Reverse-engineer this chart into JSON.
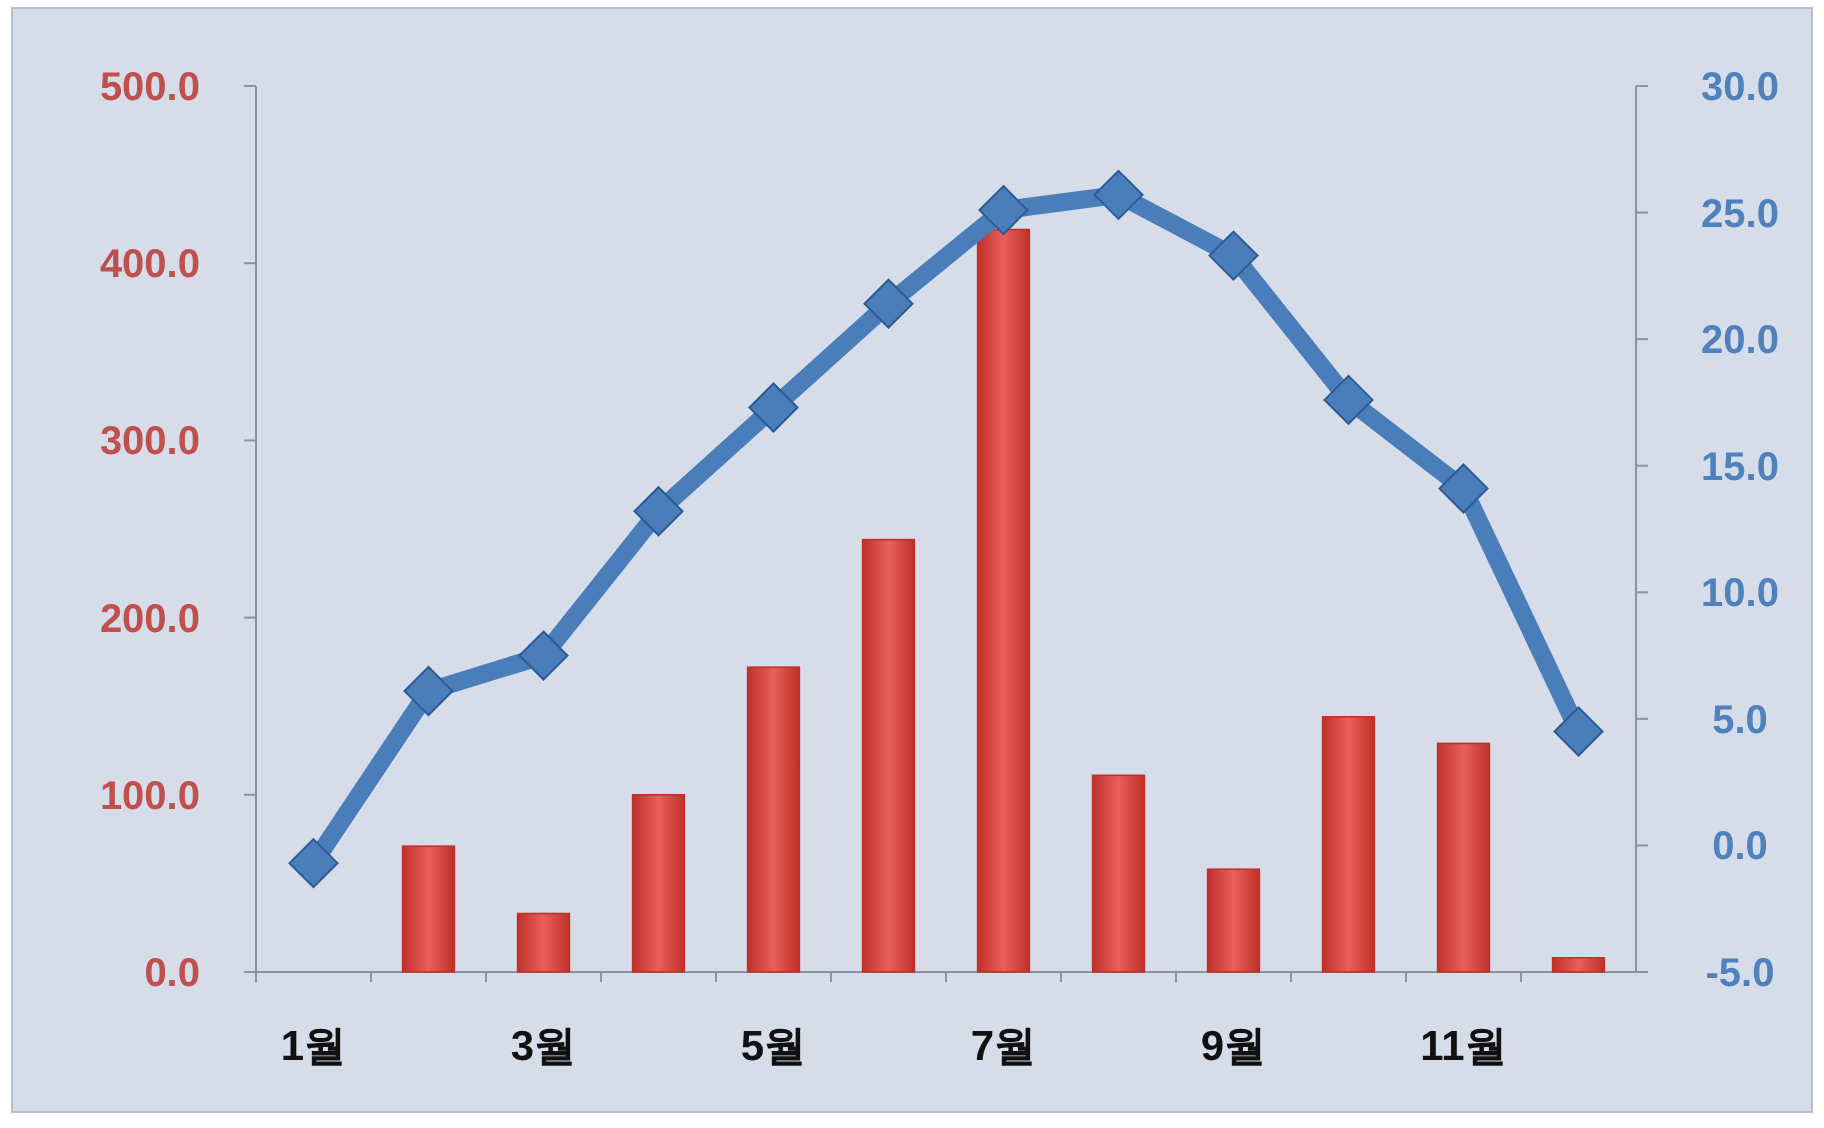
{
  "chart_data": {
    "type": "bar",
    "categories": [
      "1월",
      null,
      "3월",
      null,
      "5월",
      null,
      "7월",
      null,
      "9월",
      null,
      "11월",
      null
    ],
    "series": [
      {
        "color": "#c0302a",
        "values": [
          0,
          71,
          33,
          100,
          172,
          244,
          419,
          111,
          58,
          144,
          129,
          8
        ]
      },
      {
        "type": "line",
        "axis": "y2",
        "color": "#4a7ebb",
        "marker": "diamond",
        "values": [
          -0.7,
          6.1,
          7.5,
          13.2,
          17.3,
          21.4,
          25.1,
          25.7,
          23.3,
          17.6,
          14.1,
          4.5
        ]
      }
    ],
    "ylim": [
      0,
      500
    ],
    "yticks": [
      {
        "value": 0,
        "label": "0.0"
      },
      {
        "value": 100,
        "label": "100.0"
      },
      {
        "value": 200,
        "label": "200.0"
      },
      {
        "value": 300,
        "label": "300.0"
      },
      {
        "value": 400,
        "label": "400.0"
      },
      {
        "value": 500,
        "label": "500.0"
      }
    ],
    "y2lim": [
      -5,
      30
    ],
    "y2ticks": [
      {
        "value": -5,
        "label": "-5.0"
      },
      {
        "value": 0,
        "label": "0.0"
      },
      {
        "value": 5,
        "label": "5.0"
      },
      {
        "value": 10,
        "label": "10.0"
      },
      {
        "value": 15,
        "label": "15.0"
      },
      {
        "value": 20,
        "label": "20.0"
      },
      {
        "value": 25,
        "label": "25.0"
      },
      {
        "value": 30,
        "label": "30.0"
      }
    ],
    "grid": false
  }
}
